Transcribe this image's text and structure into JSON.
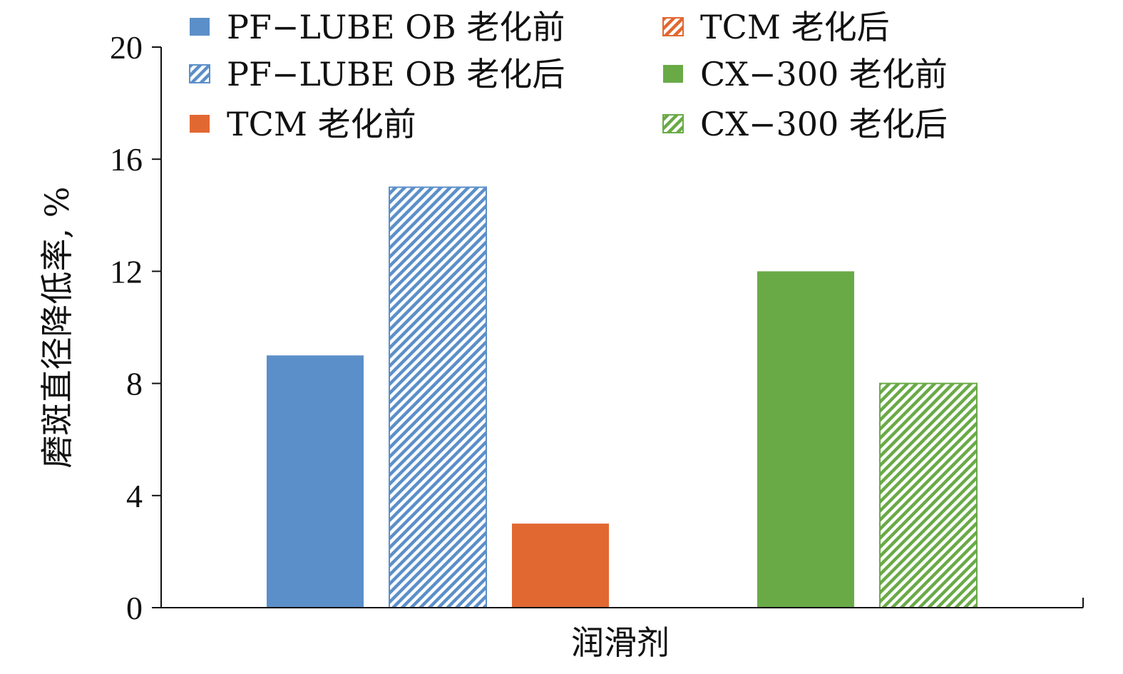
{
  "chart_data": {
    "type": "bar",
    "title": "",
    "xlabel": "润滑剂",
    "ylabel": "磨斑直径降低率, %",
    "ylim": [
      0,
      20
    ],
    "yticks": [
      "0",
      "4",
      "8",
      "12",
      "16",
      "20"
    ],
    "grid": false,
    "legend_position": "top",
    "series": [
      {
        "name": "PF−LUBE OB 老化前",
        "value": 9,
        "color": "#5b8fc9",
        "pattern": "solid"
      },
      {
        "name": "PF−LUBE OB 老化后",
        "value": 15,
        "color": "#5b8fc9",
        "pattern": "hatched"
      },
      {
        "name": "TCM 老化前",
        "value": 3,
        "color": "#e26832",
        "pattern": "solid"
      },
      {
        "name": "TCM 老化后",
        "value": null,
        "color": "#e26832",
        "pattern": "hatched"
      },
      {
        "name": "CX−300 老化前",
        "value": 12,
        "color": "#69aa47",
        "pattern": "solid"
      },
      {
        "name": "CX−300 老化后",
        "value": 8,
        "color": "#69aa47",
        "pattern": "hatched"
      }
    ]
  }
}
